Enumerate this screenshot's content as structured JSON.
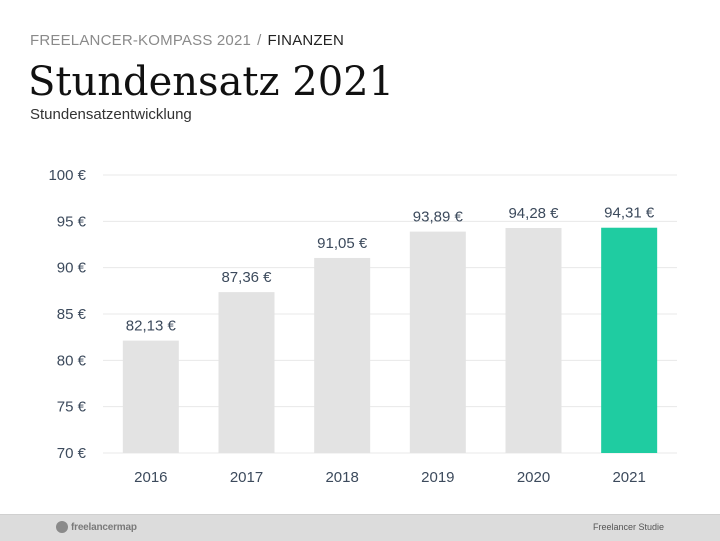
{
  "header": {
    "breadcrumb_parent": "FREELANCER-KOMPASS 2021",
    "breadcrumb_separator": "/",
    "breadcrumb_current": "FINANZEN",
    "title": "Stundensatz 2021",
    "subtitle": "Stundensatzentwicklung"
  },
  "footer": {
    "logo_text": "freelancermap",
    "note": "Freelancer Studie"
  },
  "colors": {
    "bar_default": "#e3e3e3",
    "bar_highlight": "#1fcca1",
    "grid": "#e8e8e8",
    "text": "#3c4a5c"
  },
  "chart_data": {
    "type": "bar",
    "categories": [
      "2016",
      "2017",
      "2018",
      "2019",
      "2020",
      "2021"
    ],
    "values": [
      82.13,
      87.36,
      91.05,
      93.89,
      94.28,
      94.31
    ],
    "value_labels": [
      "82,13 €",
      "87,36 €",
      "91,05 €",
      "93,89 €",
      "94,28 €",
      "94,31 €"
    ],
    "highlight_index": 5,
    "ylim": [
      70,
      100
    ],
    "yticks": [
      70,
      75,
      80,
      85,
      90,
      95,
      100
    ],
    "ytick_labels": [
      "70 €",
      "75 €",
      "80 €",
      "85 €",
      "90 €",
      "95 €",
      "100 €"
    ],
    "grid": true,
    "xlabel": "",
    "ylabel": ""
  }
}
